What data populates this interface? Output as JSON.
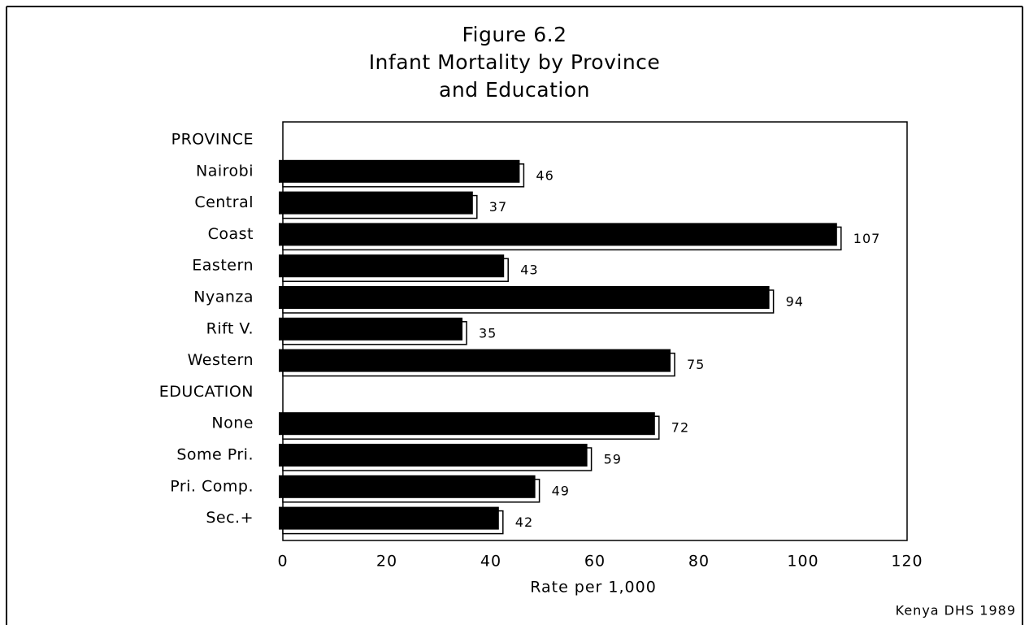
{
  "chart_data": {
    "type": "bar",
    "orientation": "horizontal",
    "title": [
      "Figure 6.2",
      "Infant Mortality by Province",
      "and Education"
    ],
    "categories": [
      "PROVINCE",
      "Nairobi",
      "Central",
      "Coast",
      "Eastern",
      "Nyanza",
      "Rift V.",
      "Western",
      "EDUCATION",
      "None",
      "Some Pri.",
      "Pri. Comp.",
      "Sec.+"
    ],
    "values": [
      null,
      46,
      37,
      107,
      43,
      94,
      35,
      75,
      null,
      72,
      59,
      49,
      42
    ],
    "color": "#000000",
    "xlim": [
      0,
      120
    ],
    "xticks": [
      0,
      20,
      40,
      60,
      80,
      100,
      120
    ],
    "x_label": "Rate per 1,000",
    "source": "Kenya DHS 1989"
  }
}
